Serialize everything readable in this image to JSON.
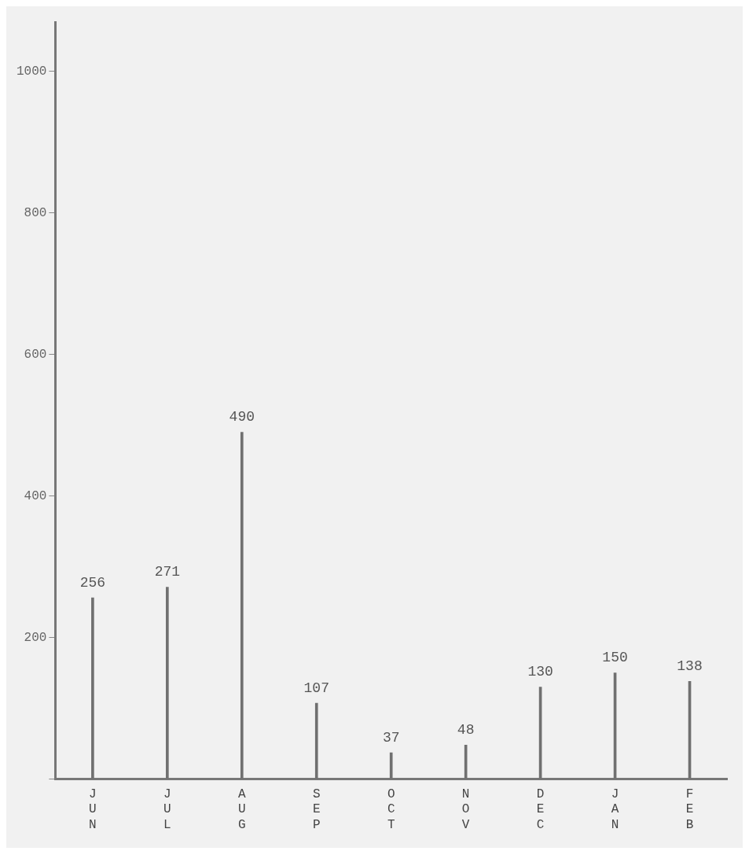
{
  "chart_data": {
    "type": "bar",
    "categories": [
      "JUN",
      "JUL",
      "AUG",
      "SEP",
      "OCT",
      "NOV",
      "DEC",
      "JAN",
      "FEB"
    ],
    "values": [
      256,
      271,
      490,
      107,
      37,
      48,
      130,
      150,
      138
    ],
    "color": "#707070",
    "data_labels": true,
    "grid": false,
    "legend": false,
    "ylim": [
      0,
      1070
    ],
    "yticks": [
      {
        "value": 0,
        "label": null
      },
      200,
      400,
      600,
      800,
      1000
    ]
  }
}
